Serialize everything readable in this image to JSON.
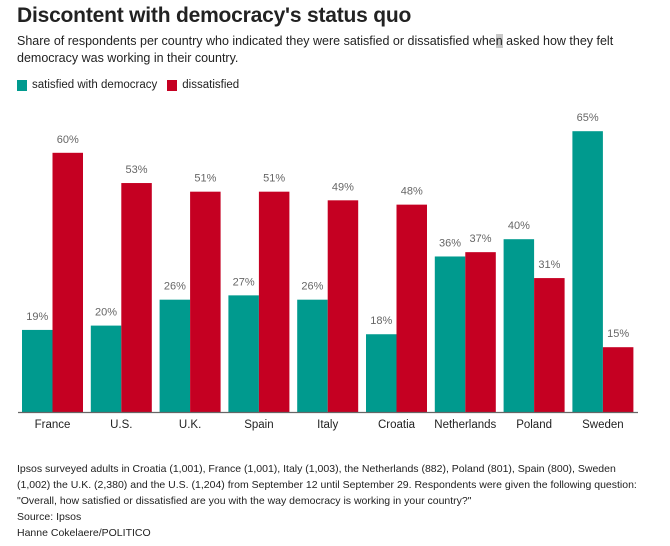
{
  "header": {
    "title": "Discontent with democracy's status quo",
    "subtitle_before": "Share of respondents per country who indicated they were satisfied or dissatisfied whe",
    "subtitle_highlight": "n",
    "subtitle_after": " asked how they felt democracy was working in their country."
  },
  "legend": [
    {
      "label": "satisfied with democracy",
      "color": "#009a8e"
    },
    {
      "label": "dissatisfied",
      "color": "#c50022"
    }
  ],
  "chart_data": {
    "type": "bar",
    "title": "Discontent with democracy's status quo",
    "xlabel": "",
    "ylabel": "",
    "ylim": [
      0,
      65
    ],
    "grid": false,
    "legend_position": "top-left",
    "categories": [
      "France",
      "U.S.",
      "U.K.",
      "Spain",
      "Italy",
      "Croatia",
      "Netherlands",
      "Poland",
      "Sweden"
    ],
    "series": [
      {
        "name": "satisfied with democracy",
        "color": "#009a8e",
        "values": [
          19,
          20,
          26,
          27,
          26,
          18,
          36,
          40,
          65
        ]
      },
      {
        "name": "dissatisfied",
        "color": "#c50022",
        "values": [
          60,
          53,
          51,
          51,
          49,
          48,
          37,
          31,
          15
        ]
      }
    ],
    "value_suffix": "%"
  },
  "footer": {
    "lines": [
      "Ipsos surveyed adults in Croatia (1,001), France (1,001), Italy (1,003), the Netherlands (882), Poland (801), Spain (800), Sweden",
      "(1,002) the U.K. (2,380) and the U.S. (1,204) from September 12 until September 29. Respondents were given the following question:",
      "\"Overall, how satisfied or dissatisfied are you with the way democracy is working in your country?\"",
      "Source: Ipsos",
      "Hanne Cokelaere/POLITICO"
    ]
  }
}
